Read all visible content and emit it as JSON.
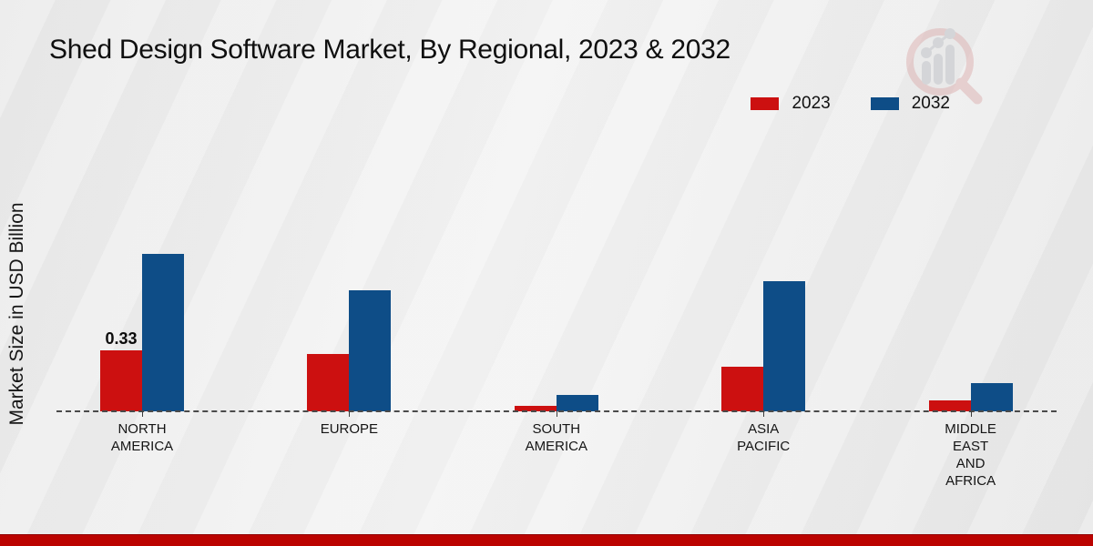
{
  "colors": {
    "series_2023": "#cc1010",
    "series_2032": "#0e4d87",
    "footer_stripe": "#bb0300",
    "baseline": "#4a4a4a",
    "background": "#ededed"
  },
  "watermark": {
    "icon": "magnifier-bar-chart-logo"
  },
  "chart_data": {
    "type": "bar",
    "title": "Shed Design Software Market, By Regional, 2023 & 2032",
    "ylabel": "Market Size in USD Billion",
    "xlabel": "",
    "unit": "USD Billion",
    "grid": "off",
    "legend_position": "top-right",
    "baseline_style": "dashed",
    "categories": [
      "NORTH AMERICA",
      "EUROPE",
      "SOUTH AMERICA",
      "ASIA PACIFIC",
      "MIDDLE EAST AND AFRICA"
    ],
    "category_lines": [
      [
        "NORTH",
        "AMERICA"
      ],
      [
        "EUROPE"
      ],
      [
        "SOUTH",
        "AMERICA"
      ],
      [
        "ASIA",
        "PACIFIC"
      ],
      [
        "MIDDLE",
        "EAST",
        "AND",
        "AFRICA"
      ]
    ],
    "series": [
      {
        "name": "2023",
        "color": "#cc1010",
        "values": [
          0.33,
          0.31,
          0.03,
          0.24,
          0.06
        ]
      },
      {
        "name": "2032",
        "color": "#0e4d87",
        "values": [
          0.85,
          0.65,
          0.09,
          0.7,
          0.15
        ]
      }
    ],
    "annotations": [
      {
        "series": "2023",
        "category": "NORTH AMERICA",
        "text": "0.33"
      }
    ]
  }
}
